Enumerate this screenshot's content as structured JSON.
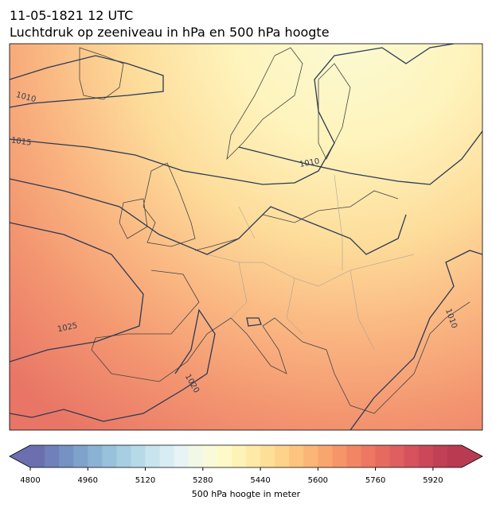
{
  "title": "11-05-1821 12 UTC",
  "subtitle": "Luchtdruk op zeeniveau in hPa en 500 hPa hoogte",
  "contour_labels": [
    "1010",
    "1015",
    "1010",
    "1025",
    "1020",
    "1010"
  ],
  "colorbar": {
    "label": "500 hPa hoogte in meter",
    "lim": [
      4800,
      6000
    ],
    "ticks": [
      4800,
      4960,
      5120,
      5280,
      5440,
      5600,
      5760,
      5920
    ],
    "colors": [
      "#6b6fb0",
      "#6f80ba",
      "#7691c3",
      "#7fa2cb",
      "#8ab2d3",
      "#98c1db",
      "#a7cee2",
      "#b7dae9",
      "#c8e4ef",
      "#d8edf3",
      "#e7f4f3",
      "#f2f8e6",
      "#f9fad7",
      "#fefac7",
      "#fef3b6",
      "#fee9a6",
      "#fddf97",
      "#fdd28a",
      "#fcc47f",
      "#fbb576",
      "#f9a56e",
      "#f69568",
      "#f28664",
      "#ed7762",
      "#e66a60",
      "#df5e5f",
      "#d6525d",
      "#cc4859",
      "#c24055",
      "#b83b51"
    ]
  }
}
